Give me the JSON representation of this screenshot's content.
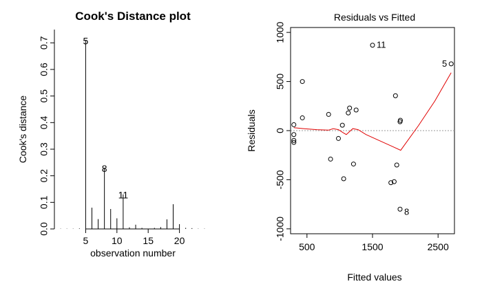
{
  "chart_data": [
    {
      "type": "bar",
      "title": "Cook's Distance plot",
      "xlabel": "observation number",
      "ylabel": "Cook's distance",
      "xlim": [
        0,
        25
      ],
      "ylim": [
        0,
        0.75
      ],
      "xticks": [
        "5",
        "10",
        "15",
        "20"
      ],
      "yticks": [
        "0.0",
        "0.1",
        "0.2",
        "0.3",
        "0.4",
        "0.5",
        "0.6",
        "0.7"
      ],
      "x": [
        1,
        2,
        3,
        4,
        5,
        6,
        7,
        8,
        9,
        10,
        11,
        12,
        13,
        14,
        15,
        16,
        17,
        18,
        19,
        20,
        21,
        22,
        23,
        24
      ],
      "values": [
        0.001,
        0.001,
        0.001,
        0.002,
        0.71,
        0.08,
        0.037,
        0.23,
        0.075,
        0.04,
        0.13,
        0.006,
        0.016,
        0.004,
        0.001,
        0.004,
        0.007,
        0.036,
        0.093,
        0.018,
        0.004,
        0.003,
        0.001,
        0.001
      ],
      "annotations": [
        {
          "x": 5,
          "y": 0.71,
          "text": "5"
        },
        {
          "x": 8,
          "y": 0.23,
          "text": "8"
        },
        {
          "x": 11,
          "y": 0.13,
          "text": "11"
        }
      ]
    },
    {
      "type": "scatter",
      "title": "Residuals vs Fitted",
      "xlabel": "Fitted values",
      "ylabel": "Residuals",
      "xlim": [
        250,
        2750
      ],
      "ylim": [
        -1000,
        1000
      ],
      "xticks": [
        "500",
        "1500",
        "2500"
      ],
      "yticks": [
        "-1000",
        "-500",
        "0",
        "500",
        "1000"
      ],
      "points": [
        {
          "x": 1500,
          "y": 870,
          "label": "11"
        },
        {
          "x": 2700,
          "y": 680,
          "label": "5"
        },
        {
          "x": 1920,
          "y": -800,
          "label": "8"
        },
        {
          "x": 430,
          "y": 500
        },
        {
          "x": 300,
          "y": 60
        },
        {
          "x": 300,
          "y": -40
        },
        {
          "x": 300,
          "y": -100
        },
        {
          "x": 300,
          "y": -120
        },
        {
          "x": 430,
          "y": 130
        },
        {
          "x": 830,
          "y": 165
        },
        {
          "x": 860,
          "y": -290
        },
        {
          "x": 980,
          "y": -80
        },
        {
          "x": 1040,
          "y": 55
        },
        {
          "x": 1060,
          "y": -490
        },
        {
          "x": 1130,
          "y": 180
        },
        {
          "x": 1150,
          "y": 230
        },
        {
          "x": 1210,
          "y": -340
        },
        {
          "x": 1250,
          "y": 210
        },
        {
          "x": 1780,
          "y": -530
        },
        {
          "x": 1830,
          "y": -520
        },
        {
          "x": 1850,
          "y": 355
        },
        {
          "x": 1870,
          "y": -350
        },
        {
          "x": 1920,
          "y": 90
        },
        {
          "x": 1925,
          "y": 105
        }
      ],
      "smooth_line": {
        "x": [
          300,
          450,
          650,
          830,
          900,
          980,
          1050,
          1100,
          1200,
          1280,
          1400,
          1600,
          1800,
          1930,
          2200,
          2450,
          2700
        ],
        "y": [
          30,
          20,
          10,
          5,
          20,
          10,
          -20,
          -40,
          20,
          10,
          -40,
          -100,
          -160,
          -200,
          50,
          300,
          590
        ]
      },
      "reference_line_y": 0,
      "colors": {
        "points": "#000000",
        "smooth": "#e00000",
        "reference": "#999999"
      }
    }
  ]
}
